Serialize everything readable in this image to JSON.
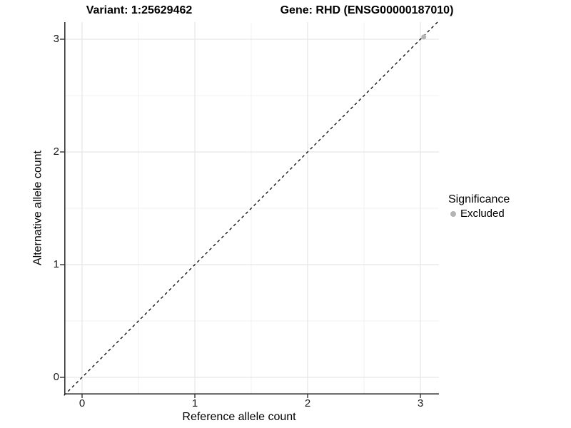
{
  "figure": {
    "titles": {
      "left": "Variant: 1:25629462",
      "right": "Gene: RHD (ENSG00000187010)"
    }
  },
  "chart_data": {
    "type": "scatter",
    "title_left": "Variant: 1:25629462",
    "title_right": "Gene: RHD (ENSG00000187010)",
    "xlabel": "Reference allele count",
    "ylabel": "Alternative allele count",
    "xlim": [
      -0.16,
      3.17
    ],
    "ylim": [
      -0.16,
      3.17
    ],
    "x_ticks": [
      0,
      1,
      2,
      3
    ],
    "y_ticks": [
      0,
      1,
      2,
      3
    ],
    "grid_minor": [
      0.5,
      1.5,
      2.5
    ],
    "grid_on": true,
    "series": [
      {
        "name": "Excluded",
        "color": "#b4b4b4",
        "points": [
          {
            "x": 3.03,
            "y": 3.02
          }
        ]
      }
    ],
    "reference_line": {
      "type": "abline",
      "slope": 1,
      "intercept": 0,
      "style": "dashed",
      "color": "#000000"
    },
    "legend": {
      "title": "Significance",
      "position": "right",
      "entries": [
        {
          "label": "Excluded",
          "color": "#b4b4b4"
        }
      ]
    },
    "colors": {
      "grid_major": "#e2e2e2",
      "grid_minor": "#f0f0f0",
      "axis_line": "#333333",
      "tick_mark": "#333333",
      "point": "#b4b4b4",
      "text": "#000000"
    }
  }
}
